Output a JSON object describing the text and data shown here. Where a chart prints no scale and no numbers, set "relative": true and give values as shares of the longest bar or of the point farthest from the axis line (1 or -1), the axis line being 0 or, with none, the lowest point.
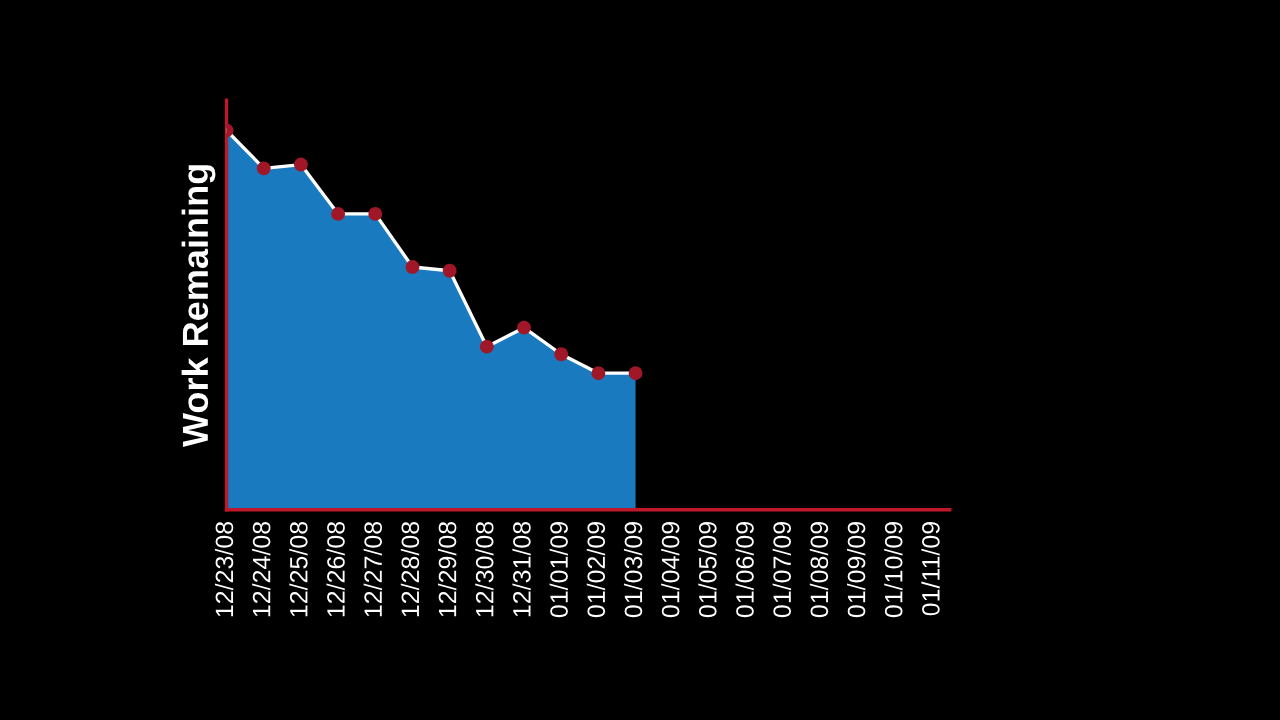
{
  "chart_data": {
    "type": "area",
    "ylabel": "Work Remaining",
    "relative": true,
    "marker": "circle",
    "categories": [
      "12/23/08",
      "12/24/08",
      "12/25/08",
      "12/26/08",
      "12/27/08",
      "12/28/08",
      "12/29/08",
      "12/30/08",
      "12/31/08",
      "01/01/09",
      "01/02/09",
      "01/03/09",
      "01/04/09",
      "01/05/09",
      "01/06/09",
      "01/07/09",
      "01/08/09",
      "01/09/09",
      "01/10/09",
      "01/11/09"
    ],
    "series": [
      {
        "color": "#1a7abf",
        "values": [
          1,
          0.9,
          0.91,
          0.78,
          0.78,
          0.64,
          0.63,
          0.43,
          0.48,
          0.41,
          0.36,
          0.36,
          null,
          null,
          null,
          null,
          null,
          null,
          null,
          null
        ]
      }
    ]
  }
}
